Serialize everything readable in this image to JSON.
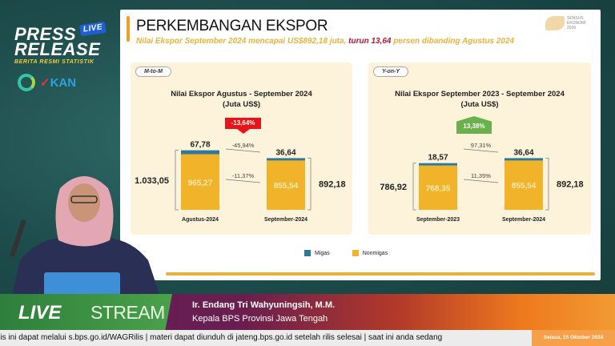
{
  "overlay": {
    "press": "PRESS",
    "release": "RELEASE",
    "live_tag": "LIVE",
    "subtitle": "BERITA RESMI STATISTIK",
    "partner": "KAN"
  },
  "slide": {
    "title": "PERKEMBANGAN EKSPOR",
    "subtitle_a": "Nilai Ekspor September 2024 mencapai US$892,18 juta, ",
    "subtitle_b": "turun 13,64",
    "subtitle_c": " persen dibanding Agustus 2024",
    "logo_text": "SENSUS EKONOMI 2026",
    "legend": [
      {
        "label": "Migas",
        "color": "#2f7a9a"
      },
      {
        "label": "Nonmigas",
        "color": "#f0b32a"
      }
    ]
  },
  "chart_data": [
    {
      "type": "bar",
      "stacked": true,
      "tag": "M-to-M",
      "title": "Nilai Ekspor Agustus - September 2024",
      "unit": "(Juta US$)",
      "categories": [
        "Agustus-2024",
        "September-2024"
      ],
      "series": [
        {
          "name": "Nonmigas",
          "values": [
            965.27,
            855.54
          ],
          "labels": [
            "965,27",
            "855,54"
          ]
        },
        {
          "name": "Migas",
          "values": [
            67.78,
            36.64
          ],
          "labels": [
            "67,78",
            "36,64"
          ]
        }
      ],
      "totals": [
        "1.033,05",
        "892,18"
      ],
      "change_total": "-13,64%",
      "change_migas": "-45,94%",
      "change_nonmigas": "-11,37%",
      "badge_color": "#e8141b"
    },
    {
      "type": "bar",
      "stacked": true,
      "tag": "Y-on-Y",
      "title": "Nilai Ekspor September 2023 - September 2024",
      "unit": "(Juta US$)",
      "categories": [
        "September-2023",
        "September-2024"
      ],
      "series": [
        {
          "name": "Nonmigas",
          "values": [
            768.35,
            855.54
          ],
          "labels": [
            "768,35",
            "855,54"
          ]
        },
        {
          "name": "Migas",
          "values": [
            18.57,
            36.64
          ],
          "labels": [
            "18,57",
            "36,64"
          ]
        }
      ],
      "totals": [
        "786,92",
        "892,18"
      ],
      "change_total": "13,38%",
      "change_migas": "97,31%",
      "change_nonmigas": "11,35%",
      "badge_color": "#6ab04c"
    }
  ],
  "banner": {
    "live": "LIVE",
    "stream": "STREAM",
    "speaker": "Ir. Endang Tri Wahyuningsih, M.M.",
    "role": "Kepala BPS Provinsi Jawa Tengah"
  },
  "ticker": {
    "text": "ilis ini dapat melalui s.bps.go.id/WAGRilis  |  materi dapat diunduh di jateng.bps.go.id setelah rilis selesai  |  saat ini anda sedang",
    "date": "Selasa, 15 Oktober 2024"
  }
}
